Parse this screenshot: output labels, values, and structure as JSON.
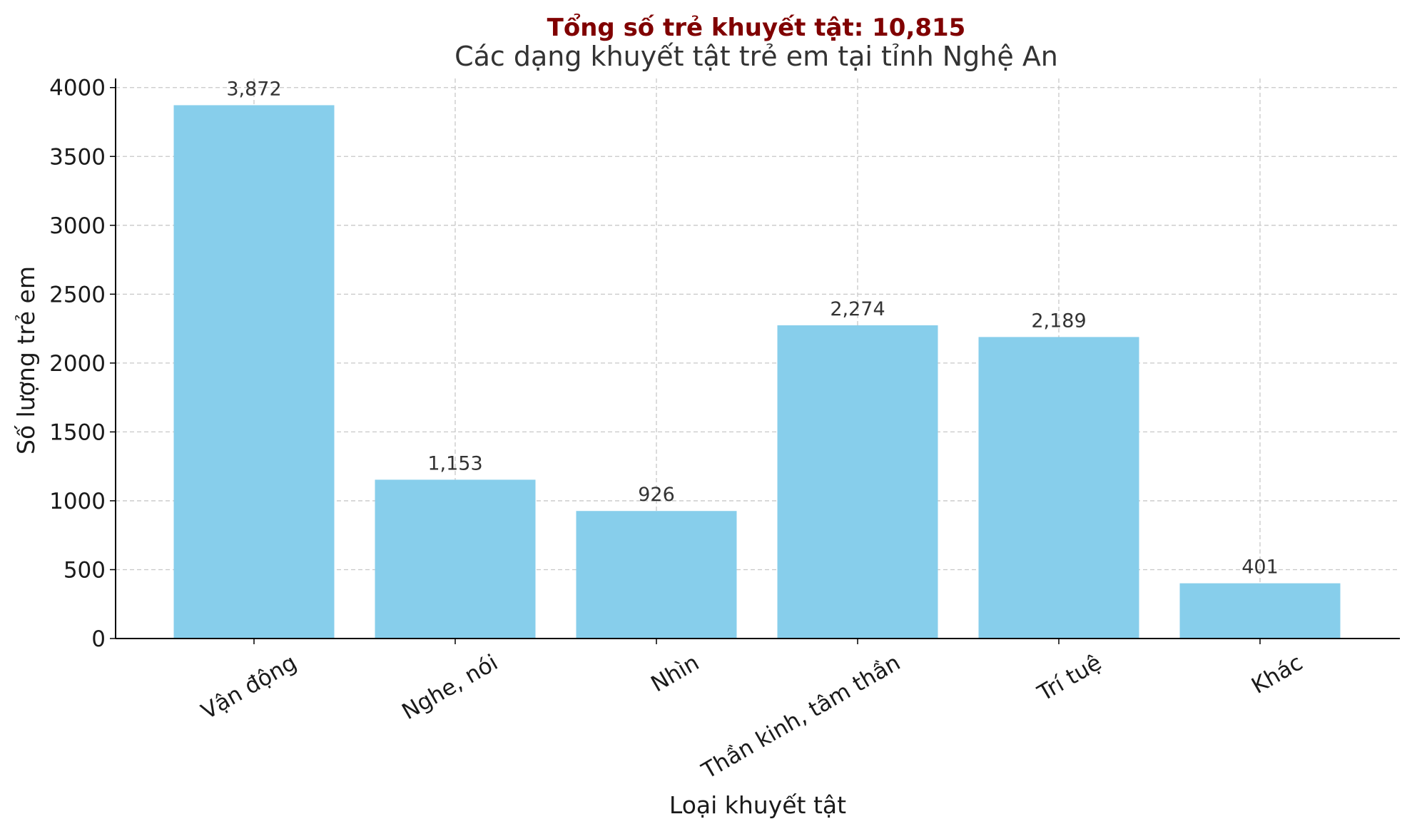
{
  "chart_data": {
    "type": "bar",
    "suptitle": "Tổng số trẻ khuyết tật: 10,815",
    "title": "Các dạng khuyết tật trẻ em tại tỉnh Nghệ An",
    "xlabel": "Loại khuyết tật",
    "ylabel": "Số lượng trẻ em",
    "categories": [
      "Vận động",
      "Nghe, nói",
      "Nhìn",
      "Thần kinh, tâm thần",
      "Trí tuệ",
      "Khác"
    ],
    "values": [
      3872,
      1153,
      926,
      2274,
      2189,
      401
    ],
    "value_labels": [
      "3,872",
      "1,153",
      "926",
      "2,274",
      "2,189",
      "401"
    ],
    "yticks": [
      0,
      500,
      1000,
      1500,
      2000,
      2500,
      3000,
      3500,
      4000
    ],
    "ytick_labels": [
      "0",
      "500",
      "1000",
      "1500",
      "2000",
      "2500",
      "3000",
      "3500",
      "4000"
    ],
    "ylim": [
      0,
      4066
    ],
    "grid": true,
    "colors": {
      "bar": "#87CEEB",
      "suptitle": "#800000",
      "grid": "#c8c8c8",
      "axis": "#000000"
    }
  }
}
